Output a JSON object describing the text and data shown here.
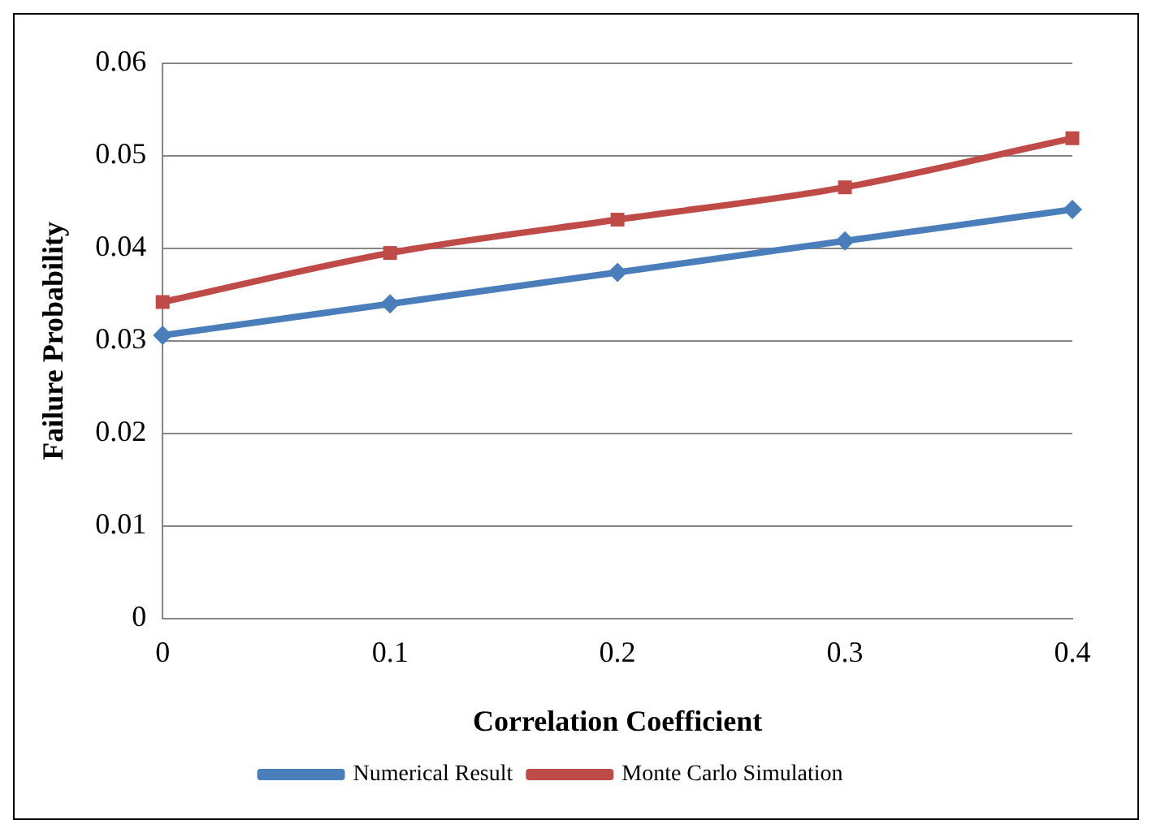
{
  "chart_data": {
    "type": "line",
    "xlabel": "Correlation Coefficient",
    "ylabel": "Failure Probability",
    "categories": [
      "0",
      "0.1",
      "0.2",
      "0.3",
      "0.4"
    ],
    "series": [
      {
        "name": "Numerical Result",
        "color": "#4a7ebb",
        "marker": "diamond",
        "values": [
          0.0306,
          0.034,
          0.0374,
          0.0408,
          0.0442
        ]
      },
      {
        "name": "Monte Carlo Simulation",
        "color": "#be4b48",
        "marker": "square",
        "values": [
          0.0342,
          0.0395,
          0.0431,
          0.0466,
          0.0519
        ]
      }
    ],
    "ylim": [
      0,
      0.06
    ],
    "yticks": [
      0,
      0.01,
      0.02,
      0.03,
      0.04,
      0.05,
      0.06
    ],
    "grid": "y",
    "legend": "bottom",
    "line_style": "solid"
  }
}
